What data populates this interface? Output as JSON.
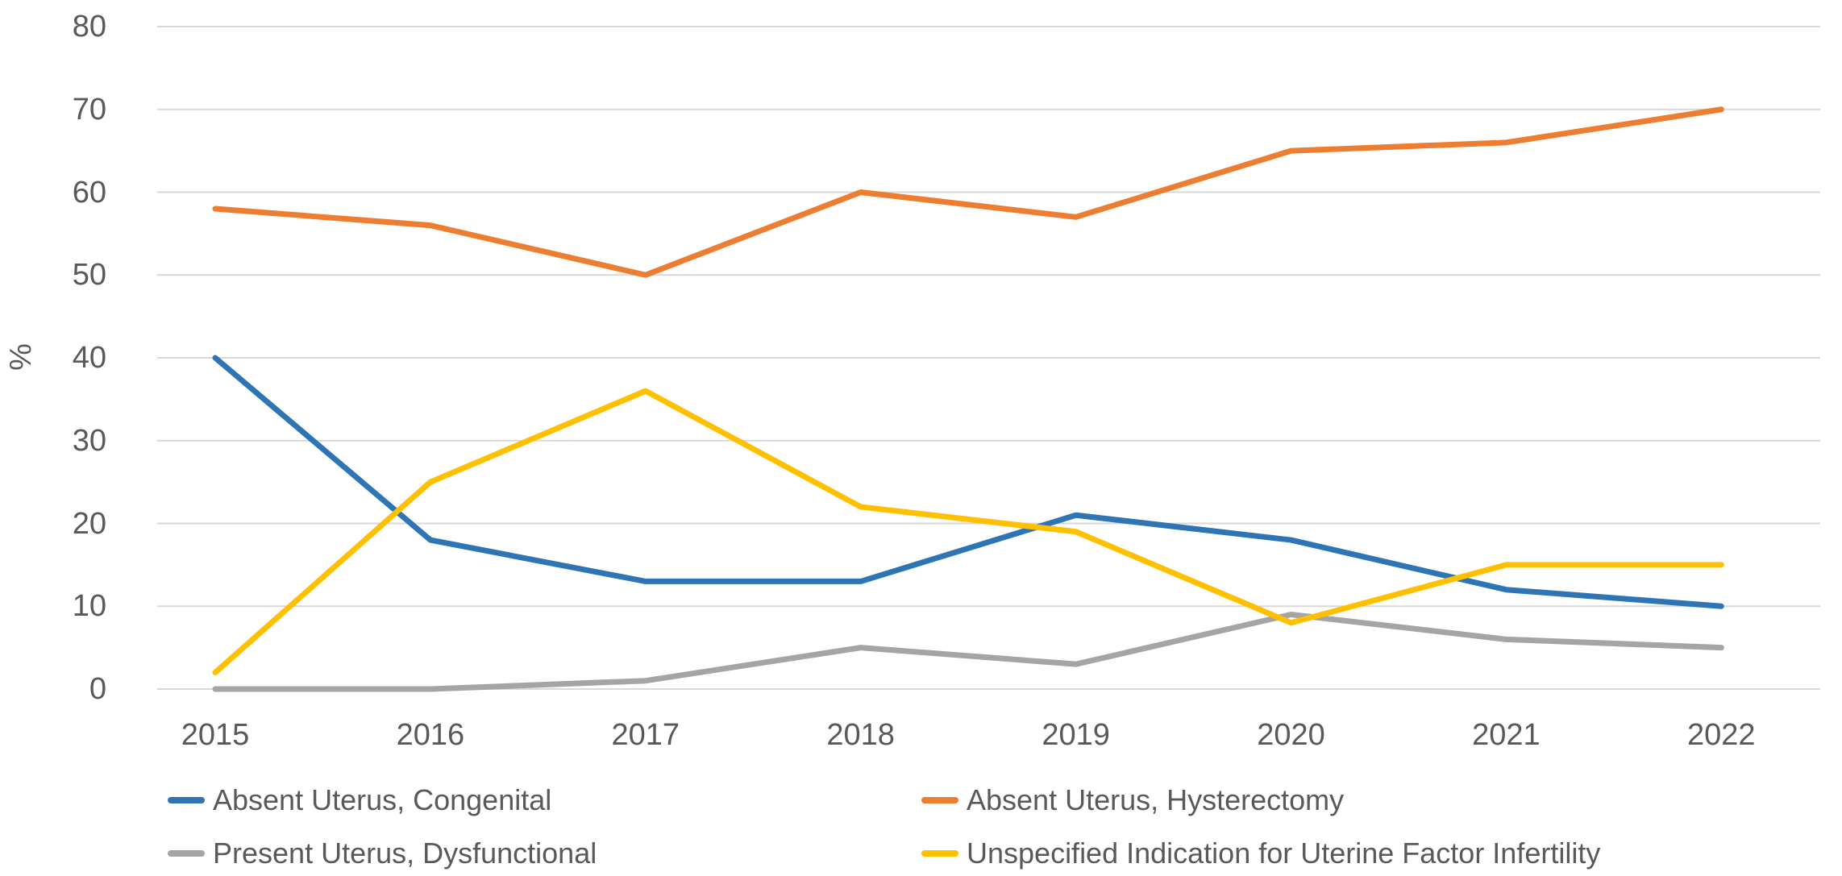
{
  "chart_data": {
    "type": "line",
    "title": "",
    "xlabel": "",
    "ylabel": "%",
    "x": [
      "2015",
      "2016",
      "2017",
      "2018",
      "2019",
      "2020",
      "2021",
      "2022"
    ],
    "ylim": [
      0,
      80
    ],
    "y_ticks": [
      0,
      10,
      20,
      30,
      40,
      50,
      60,
      70,
      80
    ],
    "grid": "horizontal",
    "legend_position": "bottom-two-columns",
    "series": [
      {
        "name": "Absent Uterus, Congenital",
        "color": "#2E75B6",
        "values": [
          40,
          18,
          13,
          13,
          21,
          18,
          12,
          10
        ]
      },
      {
        "name": "Absent Uterus, Hysterectomy",
        "color": "#ED7D31",
        "values": [
          58,
          56,
          50,
          60,
          57,
          65,
          66,
          70
        ]
      },
      {
        "name": "Present Uterus, Dysfunctional",
        "color": "#A5A5A5",
        "values": [
          0,
          0,
          1,
          5,
          3,
          9,
          6,
          5
        ]
      },
      {
        "name": "Unspecified Indication for Uterine Factor Infertility",
        "color": "#FFC000",
        "values": [
          2,
          25,
          36,
          22,
          19,
          8,
          15,
          15
        ]
      }
    ]
  },
  "style_colors": {
    "gridline": "#D9D9D9",
    "tick_text": "#595959",
    "background": "#FFFFFF"
  }
}
